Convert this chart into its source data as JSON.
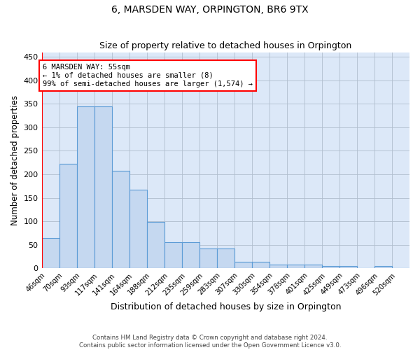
{
  "title": "6, MARSDEN WAY, ORPINGTON, BR6 9TX",
  "subtitle": "Size of property relative to detached houses in Orpington",
  "xlabel": "Distribution of detached houses by size in Orpington",
  "ylabel": "Number of detached properties",
  "bar_labels": [
    "46sqm",
    "70sqm",
    "93sqm",
    "117sqm",
    "141sqm",
    "164sqm",
    "188sqm",
    "212sqm",
    "235sqm",
    "259sqm",
    "283sqm",
    "307sqm",
    "330sqm",
    "354sqm",
    "378sqm",
    "401sqm",
    "425sqm",
    "449sqm",
    "473sqm",
    "496sqm",
    "520sqm"
  ],
  "bar_heights": [
    65,
    222,
    345,
    344,
    208,
    167,
    98,
    55,
    55,
    42,
    42,
    14,
    14,
    8,
    7,
    7,
    5,
    5,
    0,
    5,
    0
  ],
  "bar_color": "#c5d8f0",
  "bar_edge_color": "#5b9bd5",
  "background_color": "#dce8f8",
  "grid_color": "#b0bece",
  "annotation_box_text": "6 MARSDEN WAY: 55sqm\n← 1% of detached houses are smaller (8)\n99% of semi-detached houses are larger (1,574) →",
  "ylim": [
    0,
    460
  ],
  "yticks": [
    0,
    50,
    100,
    150,
    200,
    250,
    300,
    350,
    400,
    450
  ],
  "footnote1": "Contains HM Land Registry data © Crown copyright and database right 2024.",
  "footnote2": "Contains public sector information licensed under the Open Government Licence v3.0."
}
